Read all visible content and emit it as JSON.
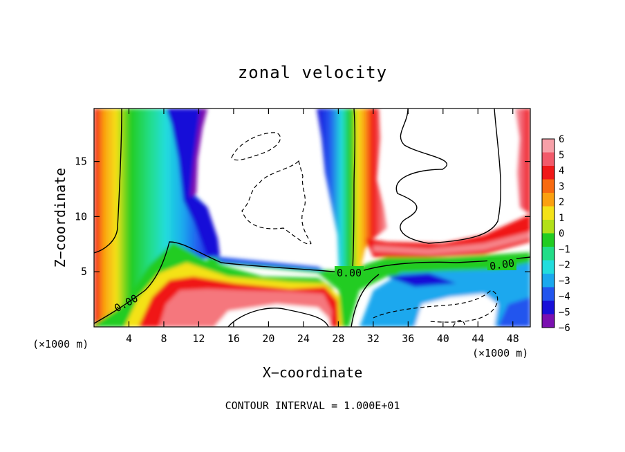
{
  "chart_data": {
    "type": "heatmap",
    "title": "zonal velocity",
    "xlabel": "X−coordinate",
    "ylabel": "Z−coordinate",
    "x_unit": "(×1000 m)",
    "z_unit": "(×1000 m)",
    "xlim": [
      0,
      50
    ],
    "ylim": [
      0,
      19.8
    ],
    "x_ticks": [
      4,
      8,
      12,
      16,
      20,
      24,
      28,
      32,
      36,
      40,
      44,
      48
    ],
    "y_ticks": [
      5,
      10,
      15
    ],
    "colorbar": {
      "levels": [
        6,
        5,
        4,
        3,
        2,
        1,
        0,
        -1,
        -2,
        -3,
        -4,
        -5,
        -6
      ],
      "tick_labels": [
        "6",
        "5",
        "4",
        "3",
        "2",
        "1",
        "0",
        "−1",
        "−2",
        "−3",
        "−4",
        "−5",
        "−6"
      ],
      "colors_top_to_bottom": [
        "#f7a0a8",
        "#f25a6a",
        "#f01818",
        "#f86a10",
        "#fba010",
        "#f4e218",
        "#b2e018",
        "#22cc22",
        "#22dd88",
        "#22dddd",
        "#1aa8ee",
        "#2255ee",
        "#1810d8",
        "#7a10b0"
      ]
    },
    "contour_labels": [
      "0.00",
      "0.00",
      "0.00"
    ],
    "note": "CONTOUR INTERVAL = 1.000E+01"
  }
}
